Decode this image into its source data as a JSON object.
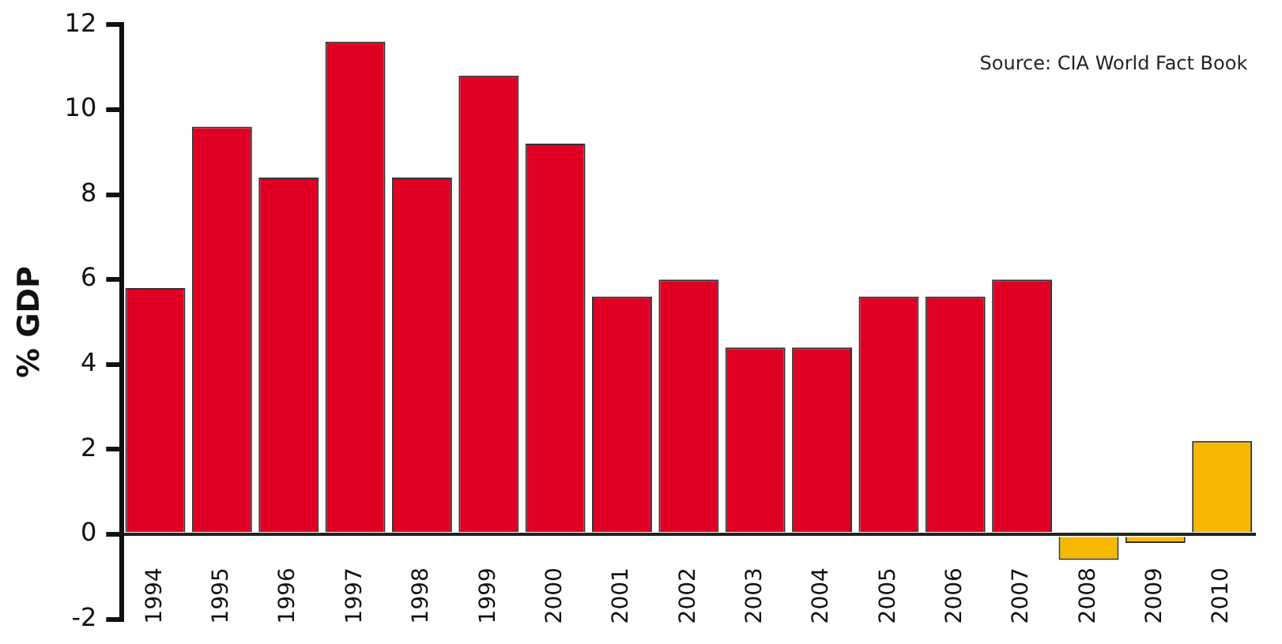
{
  "chart_data": {
    "type": "bar",
    "ylabel": "% GDP",
    "categories": [
      "1994",
      "1995",
      "1996",
      "1997",
      "1998",
      "1999",
      "2000",
      "2001",
      "2002",
      "2003",
      "2004",
      "2005",
      "2006",
      "2007",
      "2008",
      "2009",
      "2010"
    ],
    "values": [
      5.8,
      9.6,
      8.4,
      11.6,
      8.4,
      10.8,
      9.2,
      5.6,
      6.0,
      4.4,
      4.4,
      5.6,
      5.6,
      6.0,
      -0.6,
      -0.2,
      2.2
    ],
    "colors": [
      "#e00024",
      "#e00024",
      "#e00024",
      "#e00024",
      "#e00024",
      "#e00024",
      "#e00024",
      "#e00024",
      "#e00024",
      "#e00024",
      "#e00024",
      "#e00024",
      "#e00024",
      "#e00024",
      "#f7b900",
      "#f7b900",
      "#f7b900"
    ],
    "ylim": [
      -2,
      12
    ],
    "yticks": [
      -2,
      0,
      2,
      4,
      6,
      8,
      10,
      12
    ],
    "grid": false,
    "legend": false,
    "annotations": [
      "Source: CIA World Fact Book"
    ]
  }
}
